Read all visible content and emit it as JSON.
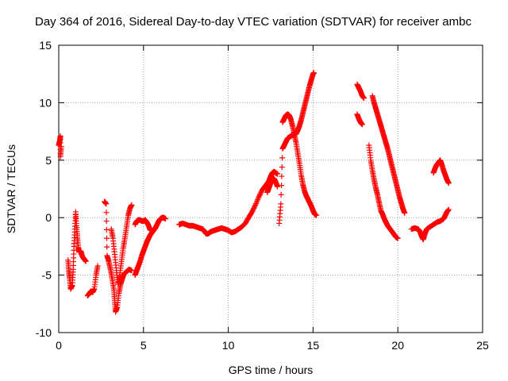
{
  "chart_data": {
    "type": "scatter",
    "title": "Day 364 of 2016, Sidereal Day-to-day VTEC variation (SDTVAR) for receiver ambc",
    "xlabel": "GPS time / hours",
    "ylabel": "SDTVAR / TECUs",
    "xlim": [
      0,
      25
    ],
    "ylim": [
      -10,
      15
    ],
    "xticks": [
      0,
      5,
      10,
      15,
      20,
      25
    ],
    "yticks": [
      -10,
      -5,
      0,
      5,
      10,
      15
    ],
    "grid": true,
    "marker": "+",
    "marker_color": "#ff0000",
    "series_segments": [
      {
        "name": "arc-1",
        "points": [
          [
            0.0,
            6.3
          ],
          [
            0.05,
            6.6
          ],
          [
            0.1,
            7.1
          ],
          [
            0.1,
            5.3
          ],
          [
            0.15,
            6.2
          ]
        ]
      },
      {
        "name": "arc-2",
        "points": [
          [
            0.55,
            -3.7
          ],
          [
            0.6,
            -4.6
          ],
          [
            0.65,
            -5.3
          ],
          [
            0.7,
            -6.2
          ],
          [
            0.8,
            -5.9
          ],
          [
            0.85,
            -4.5
          ],
          [
            0.9,
            -2.5
          ],
          [
            0.95,
            -1.0
          ],
          [
            1.0,
            0.5
          ],
          [
            1.05,
            -0.7
          ],
          [
            1.1,
            -1.7
          ],
          [
            1.15,
            -2.6
          ],
          [
            1.2,
            -3.0
          ],
          [
            1.3,
            -2.9
          ],
          [
            1.4,
            -3.4
          ],
          [
            1.5,
            -3.6
          ],
          [
            1.6,
            -3.8
          ]
        ]
      },
      {
        "name": "arc-3",
        "points": [
          [
            1.7,
            -6.8
          ],
          [
            1.8,
            -6.6
          ],
          [
            1.9,
            -6.4
          ],
          [
            2.0,
            -6.5
          ],
          [
            2.1,
            -6.2
          ],
          [
            2.2,
            -5.0
          ],
          [
            2.3,
            -4.2
          ]
        ]
      },
      {
        "name": "arc-4",
        "points": [
          [
            2.7,
            1.4
          ],
          [
            2.8,
            1.2
          ],
          [
            2.85,
            -3.3
          ],
          [
            2.95,
            -3.8
          ],
          [
            3.05,
            -4.5
          ],
          [
            3.15,
            -5.3
          ],
          [
            3.25,
            -6.2
          ],
          [
            3.3,
            -7.2
          ],
          [
            3.35,
            -8.2
          ],
          [
            3.45,
            -7.8
          ],
          [
            3.55,
            -6.6
          ],
          [
            3.65,
            -5.8
          ],
          [
            3.75,
            -5.3
          ],
          [
            3.85,
            -4.9
          ],
          [
            4.0,
            -4.7
          ],
          [
            4.15,
            -4.5
          ],
          [
            4.3,
            -4.6
          ]
        ]
      },
      {
        "name": "arc-5",
        "points": [
          [
            3.1,
            -1.0
          ],
          [
            3.2,
            -1.8
          ],
          [
            3.3,
            -3.2
          ],
          [
            3.4,
            -4.6
          ],
          [
            3.5,
            -5.8
          ],
          [
            3.6,
            -5.0
          ],
          [
            3.7,
            -3.8
          ],
          [
            3.8,
            -2.7
          ],
          [
            3.9,
            -1.8
          ],
          [
            4.0,
            -0.8
          ],
          [
            4.1,
            0.2
          ],
          [
            4.2,
            0.8
          ],
          [
            4.3,
            1.1
          ]
        ]
      },
      {
        "name": "arc-6",
        "points": [
          [
            4.5,
            -5.0
          ],
          [
            4.6,
            -4.6
          ],
          [
            4.7,
            -4.2
          ],
          [
            4.8,
            -3.8
          ],
          [
            4.9,
            -3.3
          ],
          [
            5.0,
            -2.9
          ],
          [
            5.1,
            -2.5
          ],
          [
            5.2,
            -2.1
          ],
          [
            5.3,
            -1.8
          ],
          [
            5.4,
            -1.5
          ],
          [
            5.5,
            -1.3
          ],
          [
            5.6,
            -1.1
          ],
          [
            5.7,
            -0.9
          ],
          [
            5.8,
            -0.6
          ],
          [
            5.9,
            -0.3
          ],
          [
            6.0,
            -0.1
          ],
          [
            6.1,
            0.0
          ],
          [
            6.2,
            0.0
          ],
          [
            6.3,
            -0.1
          ]
        ]
      },
      {
        "name": "arc-7",
        "points": [
          [
            4.5,
            -0.6
          ],
          [
            4.6,
            -0.3
          ],
          [
            4.7,
            -0.2
          ],
          [
            4.8,
            -0.2
          ],
          [
            4.9,
            -0.3
          ],
          [
            5.0,
            -0.3
          ],
          [
            5.1,
            -0.2
          ],
          [
            5.2,
            -0.4
          ],
          [
            5.3,
            -0.7
          ],
          [
            5.4,
            -1.1
          ]
        ]
      },
      {
        "name": "arc-8",
        "points": [
          [
            7.1,
            -0.6
          ],
          [
            7.3,
            -0.5
          ],
          [
            7.5,
            -0.6
          ],
          [
            7.7,
            -0.7
          ],
          [
            7.9,
            -0.7
          ],
          [
            8.1,
            -0.8
          ],
          [
            8.3,
            -0.9
          ],
          [
            8.5,
            -1.0
          ],
          [
            8.6,
            -1.2
          ],
          [
            8.7,
            -1.4
          ],
          [
            8.8,
            -1.4
          ],
          [
            8.9,
            -1.3
          ],
          [
            9.0,
            -1.2
          ],
          [
            9.2,
            -1.1
          ],
          [
            9.4,
            -1.0
          ],
          [
            9.6,
            -0.9
          ],
          [
            9.8,
            -1.0
          ],
          [
            10.0,
            -1.1
          ],
          [
            10.2,
            -1.3
          ],
          [
            10.4,
            -1.2
          ],
          [
            10.6,
            -1.0
          ],
          [
            10.8,
            -0.8
          ],
          [
            11.0,
            -0.5
          ],
          [
            11.2,
            0.0
          ],
          [
            11.4,
            0.5
          ],
          [
            11.6,
            1.1
          ],
          [
            11.8,
            1.8
          ],
          [
            12.0,
            2.4
          ],
          [
            12.2,
            2.8
          ],
          [
            12.4,
            3.2
          ],
          [
            12.5,
            3.6
          ],
          [
            12.6,
            3.9
          ],
          [
            12.7,
            4.0
          ],
          [
            12.8,
            3.9
          ],
          [
            12.9,
            3.8
          ]
        ]
      },
      {
        "name": "arc-9",
        "points": [
          [
            12.3,
            2.2
          ],
          [
            12.4,
            2.6
          ],
          [
            12.5,
            3.0
          ],
          [
            12.6,
            3.2
          ],
          [
            12.7,
            3.4
          ],
          [
            12.8,
            3.1
          ],
          [
            12.9,
            2.7
          ]
        ]
      },
      {
        "name": "arc-10",
        "points": [
          [
            13.0,
            -0.5
          ],
          [
            13.1,
            1.2
          ],
          [
            13.2,
            6.0
          ],
          [
            13.3,
            6.3
          ],
          [
            13.4,
            6.6
          ],
          [
            13.5,
            6.9
          ],
          [
            13.6,
            7.0
          ],
          [
            13.7,
            7.1
          ],
          [
            13.8,
            7.2
          ],
          [
            13.9,
            7.2
          ],
          [
            14.0,
            7.3
          ],
          [
            14.1,
            7.6
          ],
          [
            14.2,
            8.0
          ],
          [
            14.3,
            8.5
          ],
          [
            14.4,
            9.1
          ],
          [
            14.5,
            9.7
          ],
          [
            14.6,
            10.3
          ],
          [
            14.7,
            10.9
          ],
          [
            14.8,
            11.5
          ],
          [
            14.9,
            12.0
          ],
          [
            15.0,
            12.5
          ],
          [
            15.05,
            12.6
          ]
        ]
      },
      {
        "name": "arc-11",
        "points": [
          [
            13.2,
            8.3
          ],
          [
            13.3,
            8.6
          ],
          [
            13.4,
            8.9
          ],
          [
            13.5,
            9.0
          ],
          [
            13.6,
            8.9
          ],
          [
            13.7,
            8.5
          ],
          [
            13.8,
            7.9
          ],
          [
            13.9,
            7.2
          ],
          [
            14.0,
            6.5
          ],
          [
            14.1,
            5.6
          ],
          [
            14.2,
            4.7
          ],
          [
            14.3,
            3.7
          ],
          [
            14.4,
            2.9
          ],
          [
            14.5,
            2.3
          ],
          [
            14.6,
            1.9
          ],
          [
            14.7,
            1.6
          ],
          [
            14.8,
            1.3
          ],
          [
            14.9,
            1.0
          ],
          [
            15.0,
            0.6
          ],
          [
            15.1,
            0.3
          ],
          [
            15.2,
            0.2
          ]
        ]
      },
      {
        "name": "arc-12",
        "points": [
          [
            17.6,
            11.6
          ],
          [
            17.7,
            11.3
          ],
          [
            17.8,
            11.0
          ],
          [
            17.9,
            10.6
          ],
          [
            18.0,
            10.4
          ]
        ]
      },
      {
        "name": "arc-13",
        "points": [
          [
            17.6,
            9.0
          ],
          [
            17.7,
            8.6
          ],
          [
            17.8,
            8.3
          ],
          [
            17.9,
            8.1
          ]
        ]
      },
      {
        "name": "arc-14",
        "points": [
          [
            18.3,
            6.3
          ],
          [
            18.4,
            5.0
          ],
          [
            18.5,
            4.1
          ],
          [
            18.6,
            3.3
          ],
          [
            18.7,
            2.6
          ],
          [
            18.8,
            2.0
          ],
          [
            18.9,
            1.3
          ],
          [
            19.0,
            0.6
          ],
          [
            19.1,
            0.3
          ],
          [
            19.2,
            -0.1
          ],
          [
            19.3,
            -0.4
          ],
          [
            19.4,
            -0.7
          ],
          [
            19.5,
            -0.9
          ],
          [
            19.6,
            -1.1
          ],
          [
            19.7,
            -1.3
          ],
          [
            19.8,
            -1.5
          ],
          [
            19.9,
            -1.7
          ],
          [
            20.0,
            -1.8
          ]
        ]
      },
      {
        "name": "arc-15",
        "points": [
          [
            18.5,
            10.6
          ],
          [
            18.6,
            10.0
          ],
          [
            18.7,
            9.5
          ],
          [
            18.8,
            9.0
          ],
          [
            18.9,
            8.5
          ],
          [
            19.0,
            8.0
          ],
          [
            19.1,
            7.5
          ],
          [
            19.2,
            7.0
          ],
          [
            19.3,
            6.5
          ],
          [
            19.4,
            6.0
          ],
          [
            19.5,
            5.4
          ],
          [
            19.6,
            4.8
          ],
          [
            19.7,
            4.2
          ],
          [
            19.8,
            3.6
          ],
          [
            19.9,
            3.0
          ],
          [
            20.0,
            2.4
          ],
          [
            20.1,
            1.8
          ],
          [
            20.2,
            1.3
          ],
          [
            20.3,
            0.8
          ],
          [
            20.4,
            0.4
          ]
        ]
      },
      {
        "name": "arc-16",
        "points": [
          [
            20.8,
            -1.0
          ],
          [
            21.0,
            -0.9
          ],
          [
            21.2,
            -1.0
          ],
          [
            21.3,
            -1.2
          ],
          [
            21.4,
            -1.6
          ],
          [
            21.5,
            -1.9
          ],
          [
            21.6,
            -1.4
          ],
          [
            21.7,
            -1.0
          ],
          [
            21.9,
            -0.8
          ],
          [
            22.1,
            -0.6
          ],
          [
            22.3,
            -0.4
          ],
          [
            22.5,
            -0.3
          ],
          [
            22.7,
            -0.1
          ],
          [
            22.8,
            0.2
          ],
          [
            22.9,
            0.5
          ],
          [
            23.0,
            0.7
          ]
        ]
      },
      {
        "name": "arc-17",
        "points": [
          [
            22.1,
            3.9
          ],
          [
            22.2,
            4.3
          ],
          [
            22.3,
            4.6
          ],
          [
            22.4,
            4.8
          ],
          [
            22.5,
            5.0
          ],
          [
            22.6,
            4.6
          ],
          [
            22.7,
            4.1
          ],
          [
            22.8,
            3.7
          ],
          [
            22.9,
            3.3
          ],
          [
            23.0,
            3.0
          ]
        ]
      }
    ]
  }
}
